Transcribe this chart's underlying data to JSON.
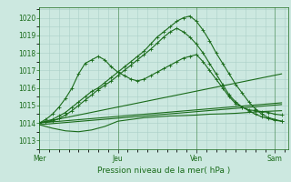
{
  "title": "Pression niveau de la mer( hPa )",
  "bg_color": "#cce8e0",
  "grid_color": "#aacfc8",
  "line_color": "#1a6b1a",
  "ymin": 1012.5,
  "ymax": 1020.6,
  "yticks": [
    1013,
    1014,
    1015,
    1016,
    1017,
    1018,
    1019,
    1020
  ],
  "day_labels": [
    "Mer",
    "Jeu",
    "Ven",
    "Sam"
  ],
  "day_positions": [
    0,
    48,
    96,
    144
  ],
  "xlim": [
    0,
    152
  ],
  "series": [
    {
      "x": [
        0,
        4,
        8,
        12,
        16,
        20,
        24,
        28,
        32,
        36,
        40,
        44,
        48,
        52,
        56,
        60,
        64,
        68,
        72,
        76,
        80,
        84,
        88,
        92,
        96,
        100,
        104,
        108,
        112,
        116,
        120,
        124,
        128,
        132,
        136,
        140,
        144,
        148
      ],
      "y": [
        1014.0,
        1014.1,
        1014.2,
        1014.4,
        1014.6,
        1014.9,
        1015.2,
        1015.5,
        1015.8,
        1016.0,
        1016.3,
        1016.6,
        1016.9,
        1017.2,
        1017.5,
        1017.8,
        1018.1,
        1018.5,
        1018.9,
        1019.2,
        1019.5,
        1019.8,
        1020.0,
        1020.1,
        1019.8,
        1019.3,
        1018.7,
        1018.0,
        1017.4,
        1016.8,
        1016.2,
        1015.7,
        1015.2,
        1014.8,
        1014.5,
        1014.3,
        1014.2,
        1014.1
      ],
      "marker": true,
      "lw": 0.8
    },
    {
      "x": [
        0,
        4,
        8,
        12,
        16,
        20,
        24,
        28,
        32,
        36,
        40,
        44,
        48,
        52,
        56,
        60,
        64,
        68,
        72,
        76,
        80,
        84,
        88,
        92,
        96,
        100,
        104,
        108,
        112,
        116,
        120,
        124,
        128,
        132,
        136,
        140,
        144,
        148
      ],
      "y": [
        1014.0,
        1014.05,
        1014.1,
        1014.25,
        1014.45,
        1014.7,
        1015.0,
        1015.3,
        1015.6,
        1015.9,
        1016.15,
        1016.4,
        1016.7,
        1017.0,
        1017.3,
        1017.6,
        1017.9,
        1018.2,
        1018.55,
        1018.9,
        1019.2,
        1019.4,
        1019.2,
        1018.9,
        1018.5,
        1018.0,
        1017.4,
        1016.8,
        1016.2,
        1015.6,
        1015.2,
        1014.9,
        1014.7,
        1014.5,
        1014.35,
        1014.25,
        1014.15,
        1014.1
      ],
      "marker": true,
      "lw": 0.8
    },
    {
      "x": [
        0,
        4,
        8,
        12,
        16,
        20,
        24,
        28,
        32,
        36,
        40,
        44,
        48,
        52,
        56,
        60,
        64,
        68,
        72,
        76,
        80,
        84,
        88,
        92,
        96,
        100,
        104,
        108,
        112,
        116,
        120,
        124,
        128,
        132,
        136,
        140,
        144,
        148
      ],
      "y": [
        1014.0,
        1014.2,
        1014.5,
        1014.9,
        1015.4,
        1016.0,
        1016.8,
        1017.4,
        1017.6,
        1017.8,
        1017.6,
        1017.2,
        1016.9,
        1016.7,
        1016.5,
        1016.4,
        1016.5,
        1016.7,
        1016.9,
        1017.1,
        1017.3,
        1017.5,
        1017.7,
        1017.8,
        1017.9,
        1017.5,
        1017.0,
        1016.5,
        1016.0,
        1015.5,
        1015.1,
        1014.9,
        1014.75,
        1014.7,
        1014.65,
        1014.6,
        1014.5,
        1014.45
      ],
      "marker": true,
      "lw": 0.8
    },
    {
      "x": [
        0,
        148
      ],
      "y": [
        1013.9,
        1015.05
      ],
      "marker": false,
      "lw": 0.8
    },
    {
      "x": [
        0,
        148
      ],
      "y": [
        1014.0,
        1015.15
      ],
      "marker": false,
      "lw": 0.8
    },
    {
      "x": [
        0,
        148
      ],
      "y": [
        1014.0,
        1016.8
      ],
      "marker": false,
      "lw": 0.8
    },
    {
      "x": [
        0,
        8,
        16,
        24,
        32,
        40,
        48,
        56,
        64,
        72,
        80,
        88,
        96,
        104,
        112,
        120,
        128,
        136,
        148
      ],
      "y": [
        1013.9,
        1013.7,
        1013.55,
        1013.5,
        1013.6,
        1013.8,
        1014.1,
        1014.2,
        1014.3,
        1014.35,
        1014.4,
        1014.42,
        1014.45,
        1014.5,
        1014.52,
        1014.55,
        1014.6,
        1014.65,
        1014.7
      ],
      "marker": false,
      "lw": 0.8
    }
  ]
}
